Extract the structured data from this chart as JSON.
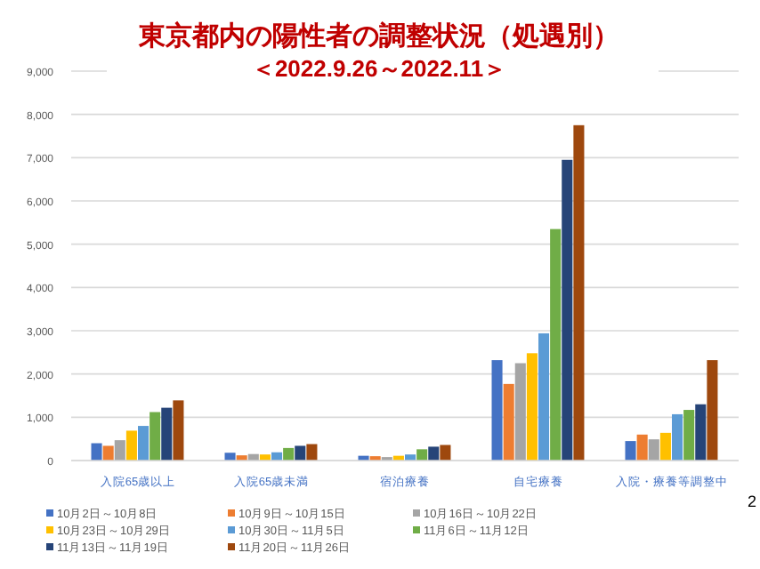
{
  "chart_data": {
    "type": "bar",
    "title": "東京都内の陽性者の調整状況（処遇別）",
    "subtitle": "＜2022.9.26～2022.11＞",
    "categories": [
      "入院65歳以上",
      "入院65歳未満",
      "宿泊療養",
      "自宅療養",
      "入院・療養等調整中"
    ],
    "ylim": [
      0,
      9000
    ],
    "yticks": [
      {
        "value": 0,
        "label": "0"
      },
      {
        "value": 1000,
        "label": "1,000"
      },
      {
        "value": 2000,
        "label": "2,000"
      },
      {
        "value": 3000,
        "label": "3,000"
      },
      {
        "value": 4000,
        "label": "4,000"
      },
      {
        "value": 5000,
        "label": "5,000"
      },
      {
        "value": 6000,
        "label": "6,000"
      },
      {
        "value": 7000,
        "label": "7,000"
      },
      {
        "value": 8000,
        "label": "8,000"
      },
      {
        "value": 9000,
        "label": "9,000"
      }
    ],
    "grid": "y",
    "legend": "bottom",
    "series": [
      {
        "name": "10月2日～10月8日",
        "color": "#4472c4",
        "values": [
          400,
          180,
          110,
          2320,
          450
        ]
      },
      {
        "name": "10月9日～10月15日",
        "color": "#ed7d31",
        "values": [
          340,
          120,
          100,
          1770,
          600
        ]
      },
      {
        "name": "10月16日～10月22日",
        "color": "#a5a5a5",
        "values": [
          470,
          150,
          80,
          2250,
          490
        ]
      },
      {
        "name": "10月23日～10月29日",
        "color": "#ffc000",
        "values": [
          690,
          140,
          110,
          2480,
          640
        ]
      },
      {
        "name": "10月30日～11月5日",
        "color": "#5b9bd5",
        "values": [
          800,
          190,
          140,
          2940,
          1070
        ]
      },
      {
        "name": "11月6日～11月12日",
        "color": "#70ad47",
        "values": [
          1120,
          290,
          260,
          5350,
          1170
        ]
      },
      {
        "name": "11月13日～11月19日",
        "color": "#264478",
        "values": [
          1220,
          340,
          320,
          6950,
          1300
        ]
      },
      {
        "name": "11月20日～11月26日",
        "color": "#9e480e",
        "values": [
          1390,
          380,
          360,
          7750,
          2320
        ]
      }
    ],
    "annotations": [
      "2"
    ]
  }
}
